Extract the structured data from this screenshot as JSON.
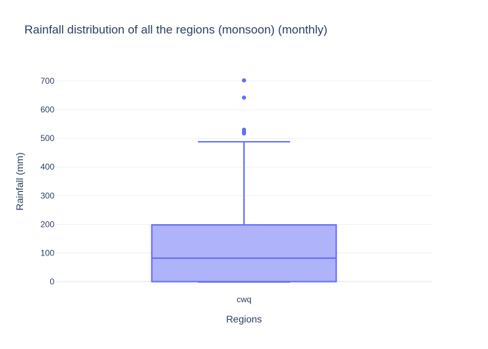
{
  "chart_data": {
    "type": "box",
    "title": "Rainfall distribution of all the regions (monsoon) (monthly)",
    "xlabel": "Regions",
    "ylabel": "Rainfall (mm)",
    "categories": [
      "cwq"
    ],
    "ylim": [
      -20,
      730
    ],
    "yticks": [
      0,
      100,
      200,
      300,
      400,
      500,
      600,
      700
    ],
    "grid": true,
    "series": [
      {
        "category": "cwq",
        "min": 0,
        "q1": 0,
        "median": 82,
        "q3": 198,
        "upper_fence": 488,
        "outliers": [
          517,
          522,
          530,
          642,
          702
        ]
      }
    ],
    "colors": {
      "box_fill": "#aeb3fa",
      "box_line": "#636efa",
      "text": "#2a3f5f",
      "grid": "#ebf0f8"
    }
  }
}
